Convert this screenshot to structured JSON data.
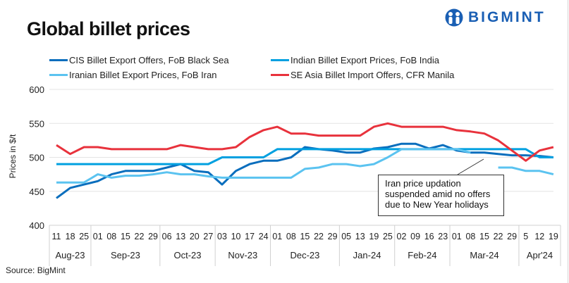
{
  "title": "Global billet prices",
  "logo": {
    "text": "BIGMINT",
    "icon": "bigmint-people-icon"
  },
  "source": "Source:  BigMint",
  "annotation": "Iran price updation suspended  amid no offers due to New Year holidays",
  "chart_data": {
    "type": "line",
    "title": "Global billet prices",
    "ylabel": "Prices in $/t",
    "xlabel": "",
    "ylim": [
      400,
      600
    ],
    "yticks": [
      400,
      450,
      500,
      550,
      600
    ],
    "grid": "horizontal",
    "legend_placement": "top",
    "x": [
      "11",
      "18",
      "25",
      "01",
      "08",
      "15",
      "22",
      "29",
      "06",
      "13",
      "20",
      "27",
      "03",
      "10",
      "17",
      "24",
      "01",
      "08",
      "15",
      "22",
      "29",
      "05",
      "13",
      "19",
      "25",
      "02",
      "09",
      "16",
      "23",
      "01",
      "08",
      "15",
      "22",
      "29",
      "5",
      "12",
      "19"
    ],
    "months": [
      {
        "label": "Aug-23",
        "count": 3
      },
      {
        "label": "Sep-23",
        "count": 5
      },
      {
        "label": "Oct-23",
        "count": 4
      },
      {
        "label": "Nov-23",
        "count": 4
      },
      {
        "label": "Dec-23",
        "count": 5
      },
      {
        "label": "Jan-24",
        "count": 4
      },
      {
        "label": "Feb-24",
        "count": 4
      },
      {
        "label": "Mar-24",
        "count": 5
      },
      {
        "label": "Apr'24",
        "count": 3
      }
    ],
    "series": [
      {
        "name": "CIS Billet Export Offers, FoB Black Sea",
        "color": "#0a6ebd",
        "values": [
          440,
          455,
          460,
          465,
          475,
          480,
          480,
          480,
          485,
          490,
          480,
          478,
          460,
          480,
          490,
          495,
          495,
          500,
          515,
          512,
          510,
          507,
          507,
          513,
          515,
          520,
          520,
          513,
          518,
          510,
          507,
          507,
          505,
          503,
          503,
          502,
          500
        ]
      },
      {
        "name": "Indian Billet Export Prices, FoB India",
        "color": "#00a0e0",
        "values": [
          490,
          490,
          490,
          490,
          490,
          490,
          490,
          490,
          490,
          490,
          490,
          490,
          500,
          500,
          500,
          500,
          512,
          512,
          512,
          512,
          512,
          512,
          512,
          512,
          512,
          512,
          512,
          512,
          512,
          512,
          512,
          512,
          512,
          512,
          512,
          500,
          500
        ]
      },
      {
        "name": "Iranian Billet Export Prices, FoB Iran",
        "color": "#5bc3f0",
        "values": [
          463,
          463,
          463,
          475,
          470,
          473,
          473,
          475,
          478,
          475,
          475,
          472,
          470,
          470,
          470,
          470,
          470,
          470,
          483,
          485,
          490,
          490,
          487,
          490,
          500,
          512,
          512,
          512,
          512,
          512,
          507,
          null,
          485,
          485,
          480,
          480,
          475
        ]
      },
      {
        "name": "SE Asia Billet Import Offers, CFR Manila",
        "color": "#e8323c",
        "values": [
          518,
          505,
          515,
          515,
          512,
          512,
          512,
          512,
          512,
          518,
          515,
          512,
          512,
          515,
          530,
          540,
          545,
          535,
          535,
          532,
          532,
          532,
          532,
          545,
          550,
          545,
          545,
          545,
          545,
          540,
          538,
          535,
          525,
          510,
          495,
          510,
          515
        ]
      }
    ]
  }
}
